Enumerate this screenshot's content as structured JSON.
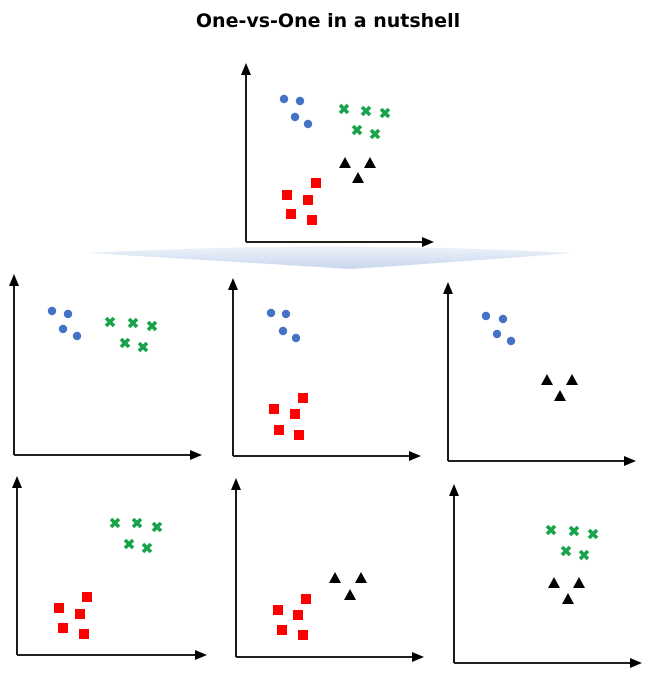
{
  "title": "One-vs-One in a nutshell",
  "colors": {
    "circle": "#4472c4",
    "cross": "#17a34a",
    "triangle": "#000000",
    "square": "#ff0000",
    "axis": "#000000",
    "fan": "#cfdcee"
  },
  "classes": [
    {
      "id": "blue",
      "marker": "circle",
      "color_key": "circle"
    },
    {
      "id": "green",
      "marker": "cross",
      "color_key": "cross"
    },
    {
      "id": "black",
      "marker": "triangle",
      "color_key": "triangle"
    },
    {
      "id": "red",
      "marker": "square",
      "color_key": "square"
    }
  ],
  "panels": [
    {
      "id": "all-classes",
      "classes": [
        "blue",
        "green",
        "black",
        "red"
      ]
    },
    {
      "id": "blue-vs-green",
      "classes": [
        "blue",
        "green"
      ]
    },
    {
      "id": "blue-vs-red",
      "classes": [
        "blue",
        "red"
      ]
    },
    {
      "id": "blue-vs-black",
      "classes": [
        "blue",
        "black"
      ]
    },
    {
      "id": "red-vs-green",
      "classes": [
        "red",
        "green"
      ]
    },
    {
      "id": "red-vs-black",
      "classes": [
        "red",
        "black"
      ]
    },
    {
      "id": "green-vs-black",
      "classes": [
        "green",
        "black"
      ]
    }
  ]
}
